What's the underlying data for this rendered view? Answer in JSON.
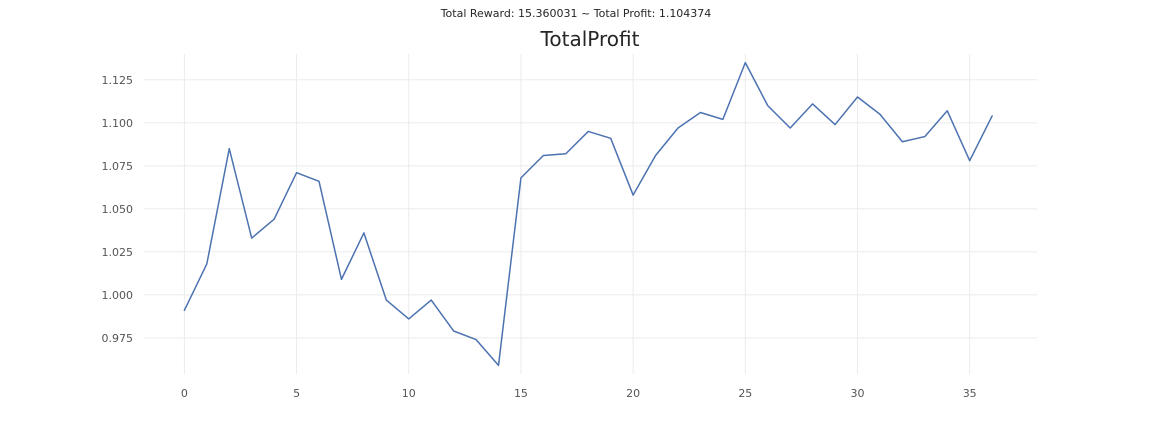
{
  "chart_data": {
    "type": "line",
    "suptitle": "Total Reward: 15.360031 ~ Total Profit: 1.104374",
    "title": "TotalProfit",
    "xlabel": "",
    "ylabel": "",
    "xlim": [
      -1.8,
      38.0
    ],
    "ylim": [
      0.954,
      1.14
    ],
    "xticks": [
      0,
      5,
      10,
      15,
      20,
      25,
      30,
      35
    ],
    "xtick_labels": [
      "0",
      "5",
      "10",
      "15",
      "20",
      "25",
      "30",
      "35"
    ],
    "yticks": [
      0.975,
      1.0,
      1.025,
      1.05,
      1.075,
      1.1,
      1.125
    ],
    "ytick_labels": [
      "0.975",
      "1.000",
      "1.025",
      "1.050",
      "1.075",
      "1.100",
      "1.125"
    ],
    "grid": true,
    "series": [
      {
        "name": "TotalProfit",
        "color": "#4c72b0",
        "x": [
          0,
          1,
          2,
          3,
          4,
          5,
          6,
          7,
          8,
          9,
          10,
          11,
          12,
          13,
          14,
          15,
          16,
          17,
          18,
          19,
          20,
          21,
          22,
          23,
          24,
          25,
          26,
          27,
          28,
          29,
          30,
          31,
          32,
          33,
          34,
          35,
          36
        ],
        "y": [
          0.991,
          1.018,
          1.085,
          1.033,
          1.044,
          1.071,
          1.066,
          1.009,
          1.036,
          0.997,
          0.986,
          0.997,
          0.979,
          0.974,
          0.959,
          1.068,
          1.081,
          1.082,
          1.095,
          1.091,
          1.058,
          1.081,
          1.097,
          1.106,
          1.102,
          1.135,
          1.11,
          1.097,
          1.111,
          1.099,
          1.115,
          1.105,
          1.089,
          1.092,
          1.107,
          1.078,
          1.104
        ]
      }
    ]
  }
}
